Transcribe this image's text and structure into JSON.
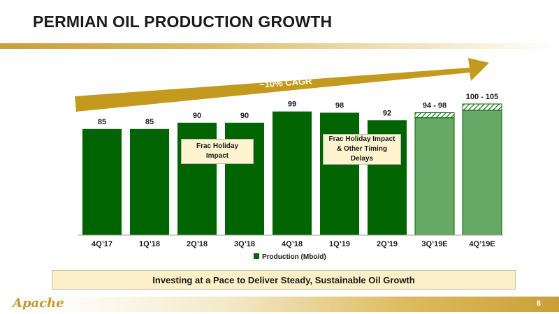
{
  "title": "PERMIAN OIL PRODUCTION GROWTH",
  "cagr_label": "~10% CAGR",
  "callouts": [
    "Frac Holiday\nImpact",
    "Frac Holiday Impact\n& Other Timing\nDelays"
  ],
  "banner": "Investing at a Pace to Deliver Steady, Sustainable Oil Growth",
  "page_number": "8",
  "logo_text": "Apache",
  "colors": {
    "actual": "#006400",
    "estimate": "#66a866",
    "arrow": "#c49a1e",
    "gold": "#c9a037"
  },
  "chart_data": {
    "type": "bar",
    "categories": [
      "4Q’17",
      "1Q’18",
      "2Q’18",
      "3Q’18",
      "4Q’18",
      "1Q’19",
      "2Q’19",
      "3Q’19E",
      "4Q’19E"
    ],
    "series": [
      {
        "name": "Production (Mbo/d)",
        "values": [
          85,
          85,
          90,
          90,
          99,
          98,
          92,
          94,
          100
        ],
        "upper": [
          85,
          85,
          90,
          90,
          99,
          98,
          92,
          98,
          105
        ],
        "labels": [
          "85",
          "85",
          "90",
          "90",
          "99",
          "98",
          "92",
          "94 - 98",
          "100 - 105"
        ],
        "estimated": [
          false,
          false,
          false,
          false,
          false,
          false,
          false,
          true,
          true
        ]
      }
    ],
    "xlabel": "",
    "ylabel": "",
    "ylim": [
      0,
      105
    ],
    "grid": false,
    "legend": "bottom-center"
  }
}
